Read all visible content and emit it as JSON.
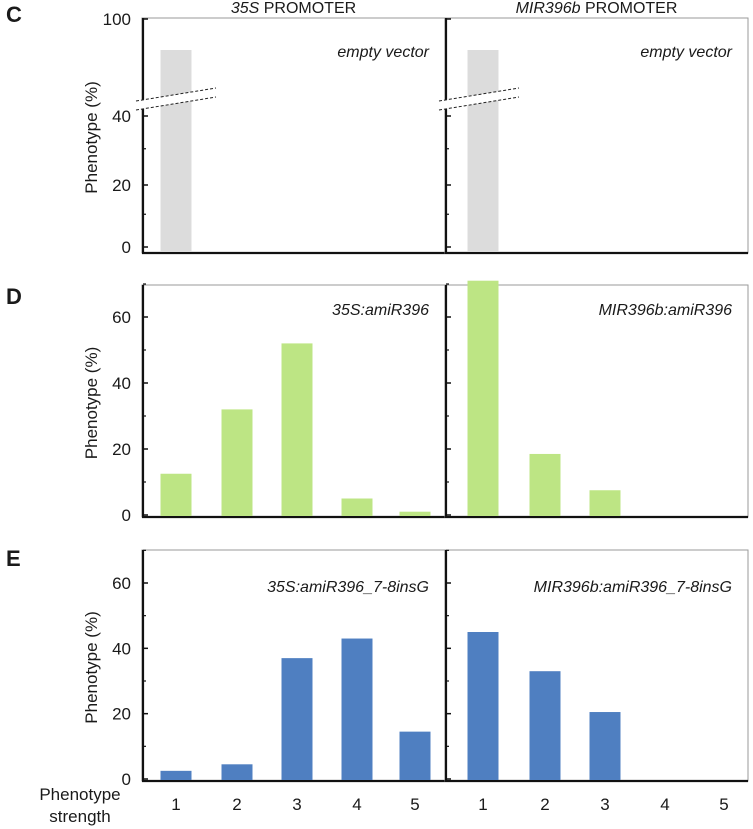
{
  "column_titles": [
    {
      "italic": "35S",
      "rest": " PROMOTER"
    },
    {
      "italic": "MIR396b",
      "rest": " PROMOTER"
    }
  ],
  "panel_letters": [
    "C",
    "D",
    "E"
  ],
  "ylabel": "Phenotype (%)",
  "xlabel_lines": [
    "Phenotype",
    "strength"
  ],
  "x_categories": [
    "1",
    "2",
    "3",
    "4",
    "5"
  ],
  "colors": {
    "C": "#dcdcdc",
    "D": "#bde584",
    "E": "#4f7fc1"
  },
  "chart_data": [
    {
      "panel": "C",
      "type": "bar",
      "axis_break": true,
      "yticks": [
        0,
        20,
        40,
        100
      ],
      "subplots": [
        {
          "annotation": "empty vector",
          "categories": [
            "1",
            "2",
            "3",
            "4",
            "5"
          ],
          "values": [
            100,
            0,
            0,
            0,
            0
          ]
        },
        {
          "annotation": "empty vector",
          "categories": [
            "1",
            "2",
            "3",
            "4",
            "5"
          ],
          "values": [
            100,
            0,
            0,
            0,
            0
          ]
        }
      ]
    },
    {
      "panel": "D",
      "type": "bar",
      "ylim": [
        0,
        70
      ],
      "yticks": [
        0,
        20,
        40,
        60
      ],
      "subplots": [
        {
          "annotation": "35S:amiR396",
          "categories": [
            "1",
            "2",
            "3",
            "4",
            "5"
          ],
          "values": [
            12.5,
            32,
            52,
            5,
            1
          ]
        },
        {
          "annotation": "MIR396b:amiR396",
          "categories": [
            "1",
            "2",
            "3",
            "4",
            "5"
          ],
          "values": [
            71,
            18.5,
            7.5,
            0,
            0
          ]
        }
      ]
    },
    {
      "panel": "E",
      "type": "bar",
      "ylim": [
        0,
        70
      ],
      "yticks": [
        0,
        20,
        40,
        60
      ],
      "subplots": [
        {
          "annotation": "35S:amiR396_7-8insG",
          "categories": [
            "1",
            "2",
            "3",
            "4",
            "5"
          ],
          "values": [
            2.5,
            4.5,
            37,
            43,
            14.5
          ]
        },
        {
          "annotation": "MIR396b:amiR396_7-8insG",
          "categories": [
            "1",
            "2",
            "3",
            "4",
            "5"
          ],
          "values": [
            45,
            33,
            20.5,
            0,
            0
          ]
        }
      ]
    }
  ]
}
